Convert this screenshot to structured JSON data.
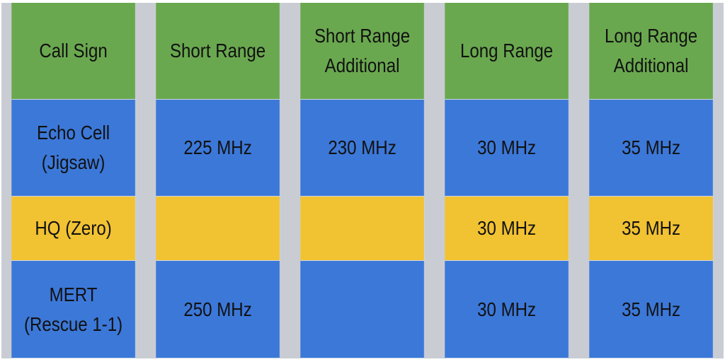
{
  "table": {
    "headers": [
      "Call Sign",
      "Short Range",
      "Short Range\nAdditional",
      "Long Range",
      "Long Range\nAdditional"
    ],
    "rows": [
      {
        "call_sign": "Echo Cell\n(Jigsaw)",
        "short_range": "225 MHz",
        "short_range_additional": "230 MHz",
        "long_range": "30 MHz",
        "long_range_additional": "35 MHz"
      },
      {
        "call_sign": "HQ (Zero)",
        "short_range": "",
        "short_range_additional": "",
        "long_range": "30 MHz",
        "long_range_additional": "35 MHz"
      },
      {
        "call_sign": "MERT\n(Rescue 1-1)",
        "short_range": "250 MHz",
        "short_range_additional": "",
        "long_range": "30 MHz",
        "long_range_additional": "35 MHz"
      }
    ]
  },
  "colors": {
    "header_bg": "#6aa84f",
    "blue_row_bg": "#3c78d8",
    "yellow_row_bg": "#f1c232"
  }
}
